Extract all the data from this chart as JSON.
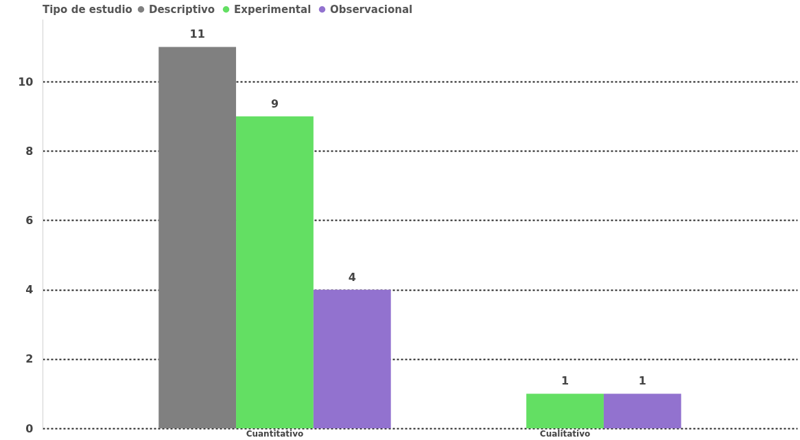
{
  "chart_data": {
    "type": "bar",
    "legend_title": "Tipo de estudio",
    "categories": [
      "Cuantitativo",
      "Cualitativo"
    ],
    "series": [
      {
        "name": "Descriptivo",
        "color": "#808080",
        "values": [
          11,
          null
        ]
      },
      {
        "name": "Experimental",
        "color": "#63df63",
        "values": [
          9,
          1
        ]
      },
      {
        "name": "Observacional",
        "color": "#9272cf",
        "values": [
          4,
          1
        ]
      }
    ],
    "ylim": [
      0,
      11.8
    ],
    "yticks": [
      0,
      2,
      4,
      6,
      8,
      10
    ],
    "grid": "y",
    "legend": "top left",
    "data_labels": true
  }
}
